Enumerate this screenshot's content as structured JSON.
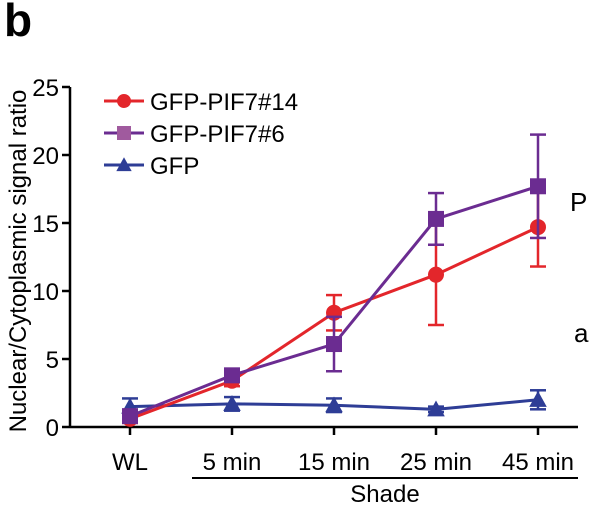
{
  "panel_label": "b",
  "side_fragments": [
    "P",
    "a"
  ],
  "colors": {
    "GFP-PIF7#14": "#e3262b",
    "GFP-PIF7#6": "#6b2c91",
    "GFP": "#2e3d96",
    "legend_pif7_6_marker": "#a05a9e"
  },
  "chart_data": {
    "type": "line",
    "ylabel": "Nuclear/Cytoplasmic signal ratio",
    "xlabel": "Shade",
    "categories": [
      "WL",
      "5 min",
      "15 min",
      "25 min",
      "45 min"
    ],
    "group_label": {
      "text": "Shade",
      "spans": [
        "5 min",
        "45 min"
      ]
    },
    "ylim": [
      0,
      25
    ],
    "yticks": [
      0,
      5,
      10,
      15,
      20,
      25
    ],
    "legend_position": "top-left",
    "series": [
      {
        "name": "GFP-PIF7#14",
        "marker": "circle",
        "values": [
          0.6,
          3.4,
          8.4,
          11.2,
          14.7
        ],
        "errors": [
          0.3,
          0.4,
          1.3,
          3.7,
          2.9
        ]
      },
      {
        "name": "GFP-PIF7#6",
        "marker": "square",
        "values": [
          0.8,
          3.8,
          6.1,
          15.3,
          17.7
        ],
        "errors": [
          0.3,
          0.3,
          2.0,
          1.9,
          3.8
        ]
      },
      {
        "name": "GFP",
        "marker": "triangle",
        "values": [
          1.5,
          1.7,
          1.6,
          1.3,
          2.0
        ],
        "errors": [
          0.6,
          0.5,
          0.5,
          0.2,
          0.7
        ]
      }
    ]
  }
}
